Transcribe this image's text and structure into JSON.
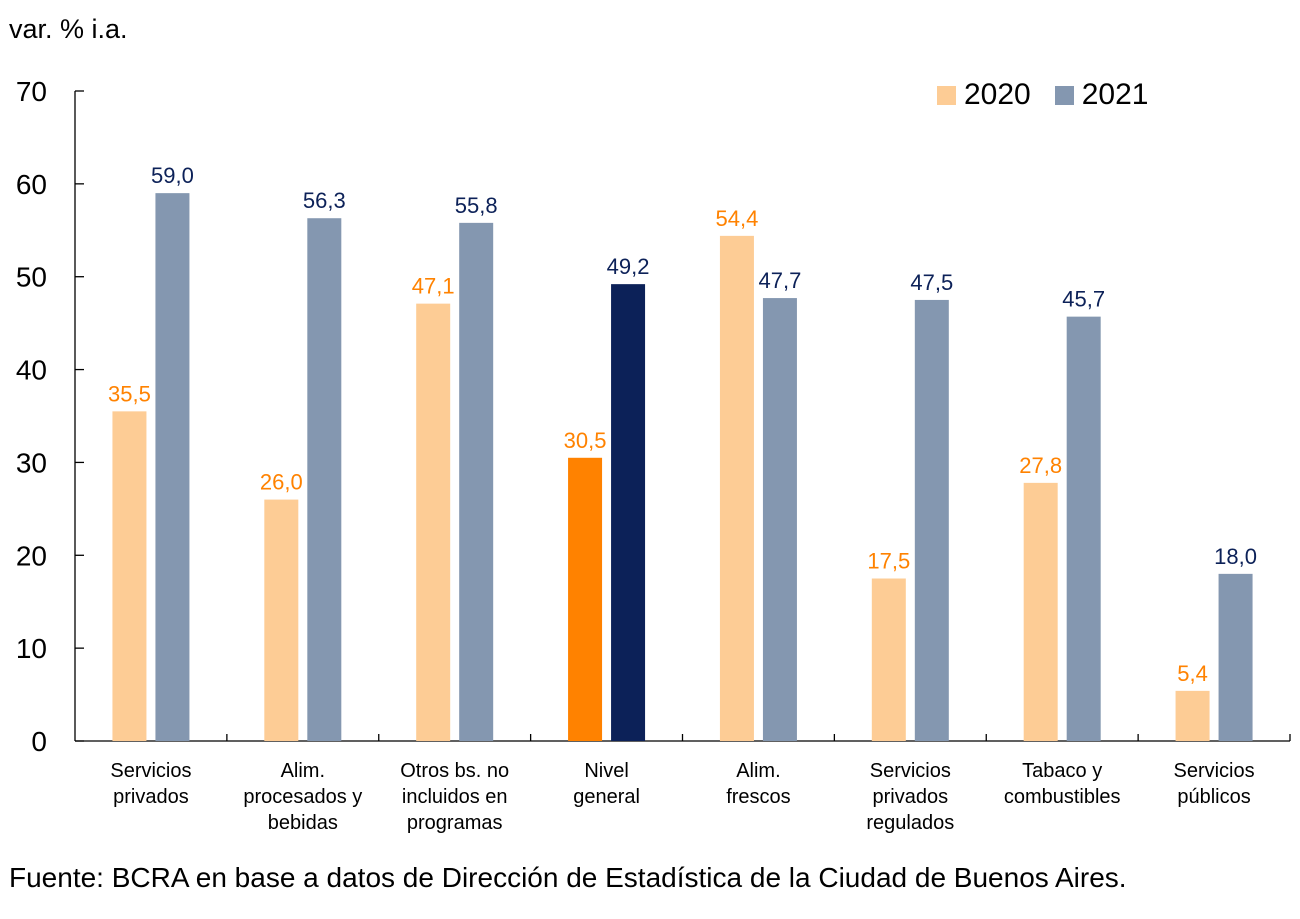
{
  "chart_data": {
    "type": "bar",
    "title": "",
    "ylabel": "var. % i.a.",
    "xlabel": "",
    "ylim": [
      0,
      70
    ],
    "yticks": [
      0,
      10,
      20,
      30,
      40,
      50,
      60,
      70
    ],
    "grid": false,
    "legend_position": "top-right",
    "categories": [
      [
        "Servicios",
        "privados"
      ],
      [
        "Alim.",
        "procesados y",
        "bebidas"
      ],
      [
        "Otros bs. no",
        "incluidos en",
        "programas"
      ],
      [
        "Nivel",
        "general"
      ],
      [
        "Alim.",
        "frescos"
      ],
      [
        "Servicios",
        "privados",
        "regulados"
      ],
      [
        "Tabaco y",
        "combustibles"
      ],
      [
        "Servicios",
        "públicos"
      ]
    ],
    "highlight_category_index": 3,
    "series": [
      {
        "name": "2020",
        "values": [
          35.5,
          26.0,
          47.1,
          30.5,
          54.4,
          17.5,
          27.8,
          5.4
        ],
        "labels": [
          "35,5",
          "26,0",
          "47,1",
          "30,5",
          "54,4",
          "17,5",
          "27,8",
          "5,4"
        ],
        "color": "#FDCC95",
        "highlight_color": "#FF8200",
        "label_color": "#FF8200"
      },
      {
        "name": "2021",
        "values": [
          59.0,
          56.3,
          55.8,
          49.2,
          47.7,
          47.5,
          45.7,
          18.0
        ],
        "labels": [
          "59,0",
          "56,3",
          "55,8",
          "49,2",
          "47,7",
          "47,5",
          "45,7",
          "18,0"
        ],
        "color": "#8497B0",
        "highlight_color": "#0C2158",
        "label_color": "#0C2158"
      }
    ],
    "source": "Fuente: BCRA en base a datos de Dirección de Estadística de la Ciudad de Buenos Aires."
  }
}
